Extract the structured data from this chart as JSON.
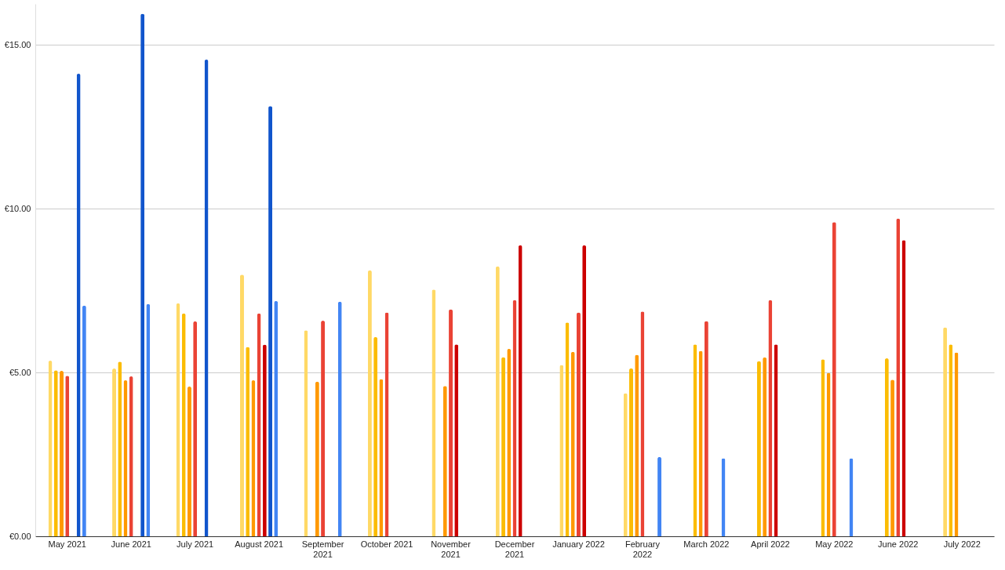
{
  "chart_data": {
    "type": "bar",
    "categories": [
      "May 2021",
      "June 2021",
      "July 2021",
      "August 2021",
      "September 2021",
      "October 2021",
      "November 2021",
      "December 2021",
      "January 2022",
      "February 2022",
      "March 2022",
      "April 2022",
      "May 2022",
      "June 2022",
      "July 2022"
    ],
    "series": [
      {
        "color": "#ffd966",
        "values": [
          5.36,
          5.12,
          7.11,
          7.99,
          6.29,
          8.12,
          7.53,
          8.24,
          5.23,
          4.37,
          null,
          null,
          null,
          null,
          6.38
        ]
      },
      {
        "color": "#fbbc04",
        "values": [
          5.07,
          5.33,
          6.8,
          5.78,
          null,
          6.08,
          null,
          5.47,
          6.53,
          5.13,
          5.86,
          5.35,
          5.4,
          5.43,
          5.86
        ]
      },
      {
        "color": "#ff9900",
        "values": [
          5.05,
          4.76,
          4.57,
          4.76,
          4.72,
          4.8,
          4.59,
          5.72,
          5.63,
          5.54,
          5.66,
          5.46,
          4.99,
          4.78,
          5.61
        ]
      },
      {
        "color": "#ea4335",
        "values": [
          4.9,
          4.88,
          6.56,
          6.8,
          6.58,
          6.83,
          6.93,
          7.21,
          6.83,
          6.86,
          6.57,
          7.21,
          9.59,
          9.7,
          null
        ]
      },
      {
        "color": "#cc0000",
        "values": [
          null,
          null,
          null,
          5.85,
          null,
          null,
          5.86,
          8.88,
          8.88,
          null,
          null,
          5.86,
          null,
          9.04,
          null
        ]
      },
      {
        "color": "#1155cc",
        "values": [
          14.12,
          15.95,
          14.55,
          13.13,
          null,
          null,
          null,
          null,
          null,
          null,
          null,
          null,
          null,
          null,
          null
        ]
      },
      {
        "color": "#4285f4",
        "values": [
          7.04,
          7.09,
          null,
          7.18,
          7.16,
          null,
          null,
          null,
          null,
          2.42,
          2.38,
          null,
          2.38,
          null,
          null
        ]
      }
    ],
    "ylim": [
      0,
      16.25
    ],
    "yticks": [
      {
        "value": 0,
        "label": "€0.00"
      },
      {
        "value": 5,
        "label": "€5.00"
      },
      {
        "value": 10,
        "label": "€10.00"
      },
      {
        "value": 15,
        "label": "€15.00"
      }
    ],
    "grid": "y"
  }
}
